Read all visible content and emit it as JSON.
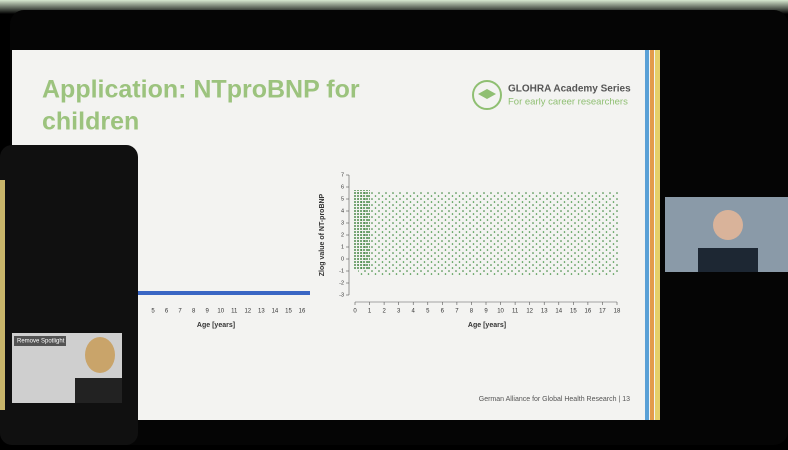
{
  "slide": {
    "title_line1": "Application: NTproBNP for",
    "title_line2": "children",
    "logo_title": "GLOHRA Academy Series",
    "logo_subtitle": "For early career researchers",
    "footer": "German Alliance for Global Health Research | 13"
  },
  "left_plot": {
    "xlabel": "Age [years]",
    "xticks": [
      5,
      6,
      7,
      8,
      9,
      10,
      11,
      12,
      13,
      14,
      15,
      16
    ]
  },
  "right_plot": {
    "ylabel": "Zlog value of NT-proBNP",
    "xlabel": "Age [years]",
    "xticks": [
      0,
      1,
      2,
      3,
      4,
      5,
      6,
      7,
      8,
      9,
      10,
      11,
      12,
      13,
      14,
      15,
      16,
      17,
      18
    ],
    "yticks": [
      -3,
      -2,
      -1,
      0,
      1,
      2,
      3,
      4,
      5,
      6,
      7
    ]
  },
  "participants": {
    "spotlight_button": "Remove Spotlight"
  }
}
